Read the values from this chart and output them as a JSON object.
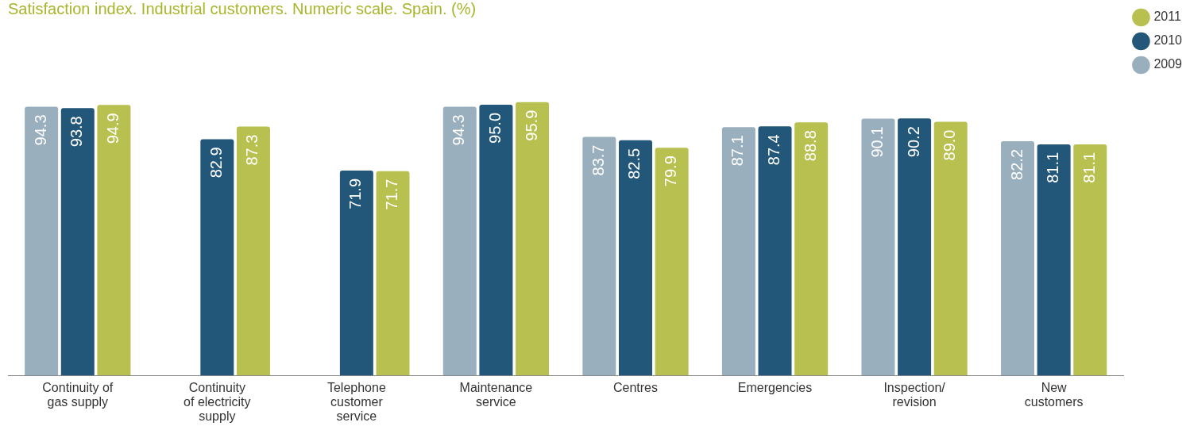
{
  "chart_data": {
    "type": "bar",
    "title": "Satisfaction index. Industrial customers. Numeric scale. Spain. (%)",
    "categories": [
      "Continuity of\ngas supply",
      "Continuity\nof electricity\nsupply",
      "Telephone\ncustomer\nservice",
      "Maintenance\nservice",
      "Centres",
      "Emergencies",
      "Inspection/\nrevision",
      "New\ncustomers"
    ],
    "series": [
      {
        "name": "2009",
        "color": "#9aafbd",
        "values": [
          94.3,
          null,
          null,
          94.3,
          83.7,
          87.1,
          90.1,
          82.2
        ],
        "value_labels": [
          "94.3",
          null,
          null,
          "94.3",
          "83.7",
          "87.1",
          "90.1",
          "82.2"
        ]
      },
      {
        "name": "2010",
        "color": "#22577a",
        "values": [
          93.8,
          82.9,
          71.9,
          95.0,
          82.5,
          87.4,
          90.2,
          81.1
        ],
        "value_labels": [
          "93.8",
          "82.9",
          "71.9",
          "95.0",
          "82.5",
          "87.4",
          "90.2",
          "81.1"
        ]
      },
      {
        "name": "2011",
        "color": "#b8c150",
        "values": [
          94.9,
          87.3,
          71.7,
          95.9,
          79.9,
          88.8,
          89.0,
          81.1
        ],
        "value_labels": [
          "94.9",
          "87.3",
          "71.7",
          "95.9",
          "79.9",
          "88.8",
          "89.0",
          "81.1"
        ]
      }
    ],
    "legend": "top right",
    "grid": false,
    "tick_labels": "x"
  }
}
